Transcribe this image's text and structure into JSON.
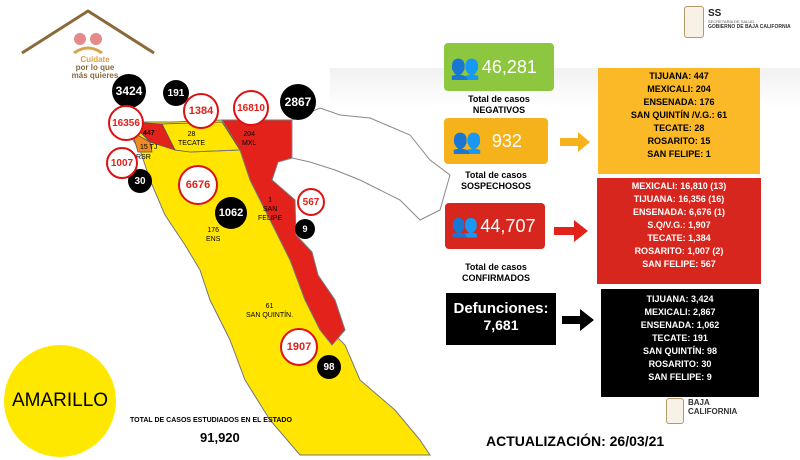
{
  "header": {
    "logo_tagline_1": "Cuídate",
    "logo_tagline_2": "por lo que",
    "logo_tagline_3": "más quieres",
    "ss_label": "SS",
    "ss_sub": "SECRETARÍA DE SALUD",
    "gov_label": "GOBIERNO DE BAJA CALIFORNIA"
  },
  "map": {
    "region_labels": {
      "tj": "15 TJ",
      "rsr": "RSR",
      "tj_top": "447",
      "tecate_num": "28",
      "tecate": "TECATE",
      "mxl_num": "204",
      "mxl": "MXL",
      "sf_num": "1",
      "sf1": "SAN",
      "sf2": "FELIPE",
      "ens_num": "176",
      "ens": "ENS",
      "sq_num": "61",
      "sq": "SAN QUINTÍN."
    },
    "deaths_circles": {
      "tijuana": "3424",
      "tecate": "191",
      "mexicali": "2867",
      "rosarito": "30",
      "ensenada": "1062",
      "san_felipe": "9",
      "san_quintin": "98"
    },
    "confirmed_circles": {
      "tijuana": "16356",
      "tecate": "1384",
      "mexicali": "16810",
      "rosarito": "1007",
      "ensenada": "6676",
      "san_felipe": "567",
      "san_quintin": "1907"
    }
  },
  "status": {
    "label": "AMARILLO",
    "color": "#ffe800"
  },
  "total_studied": {
    "label": "TOTAL DE CASOS ESTUDIADOS EN EL ESTADO",
    "value": "91,920"
  },
  "negativos": {
    "value": "46,281",
    "caption_1": "Total de casos",
    "caption_2": "NEGATIVOS",
    "color": "#8dc63f"
  },
  "sospechosos": {
    "value": "932",
    "caption_1": "Total de casos",
    "caption_2": "SOSPECHOSOS",
    "color": "#f6b21a",
    "details": [
      "TIJUANA: 447",
      "MEXICALI: 204",
      "ENSENADA: 176",
      "SAN QUINTÍN /V.G.: 61",
      "TECATE: 28",
      "ROSARITO: 15",
      "SAN FELIPE: 1"
    ]
  },
  "confirmados": {
    "value": "44,707",
    "caption_1": "Total de casos",
    "caption_2": "CONFIRMADOS",
    "color": "#d7261e",
    "details": [
      "MEXICALI: 16,810 (13)",
      "TIJUANA: 16,356 (16)",
      "ENSENADA: 6,676 (1)",
      "S.Q/V.G.: 1,907",
      "TECATE: 1,384",
      "ROSARITO: 1,007 (2)",
      "SAN FELIPE: 567"
    ]
  },
  "defunciones": {
    "label": "Defunciones:",
    "value": "7,681",
    "details": [
      "TIJUANA: 3,424",
      "MEXICALI: 2,867",
      "ENSENADA: 1,062",
      "TECATE: 191",
      "SAN QUINTÍN: 98",
      "ROSARITO: 30",
      "SAN FELIPE: 9"
    ]
  },
  "footer": {
    "update": "ACTUALIZACIÓN: 26/03/21",
    "bc_1": "BAJA",
    "bc_2": "CALIFORNIA"
  }
}
